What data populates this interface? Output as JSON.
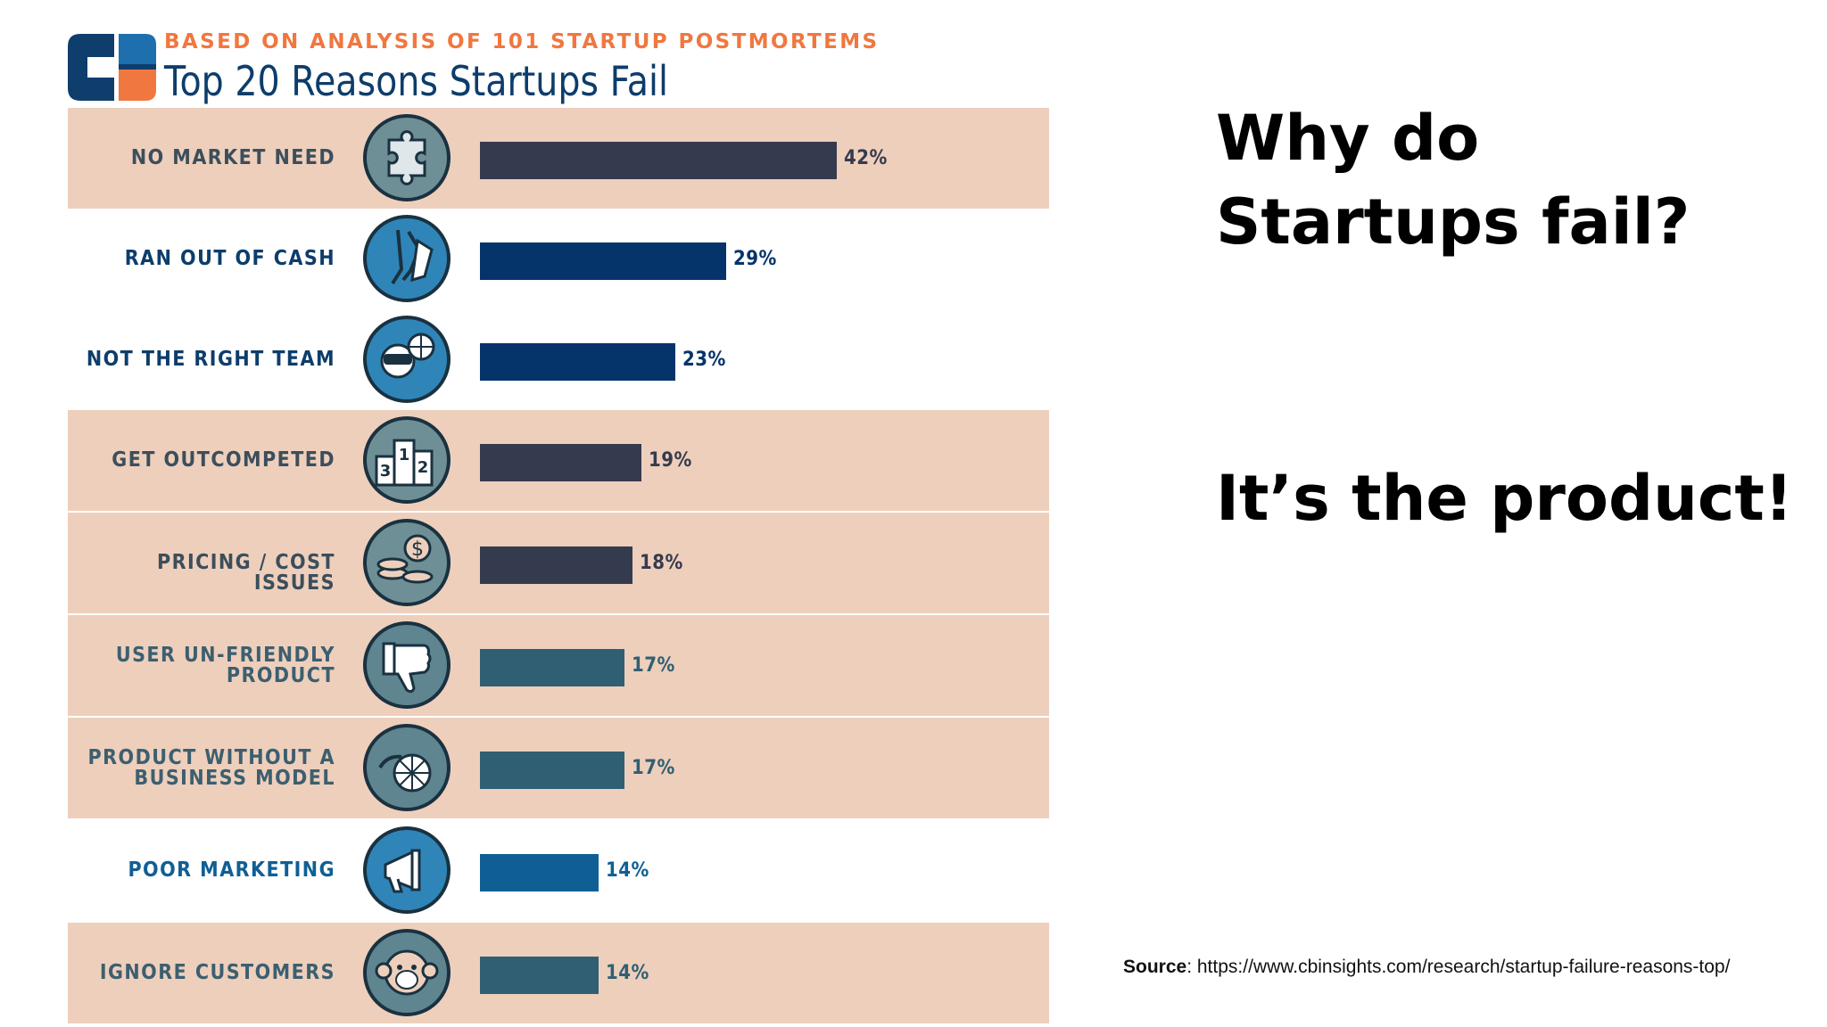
{
  "header": {
    "eyebrow": "BASED ON ANALYSIS OF 101 STARTUP POSTMORTEMS",
    "title": "Top 20 Reasons Startups Fail"
  },
  "colors": {
    "eyebrow": "#f0773f",
    "title": "#0d3d6b",
    "row_shade": "#eecfbc",
    "bars": {
      "dark_slate": "#353b4e",
      "navy": "#05346a",
      "teal": "#305f73",
      "blue": "#0f5f95"
    },
    "logo_navy": "#0f3d6c",
    "logo_blue": "#1d6fae",
    "logo_orange": "#f0773f"
  },
  "chart_data": {
    "type": "bar",
    "orientation": "horizontal",
    "categories": [
      "NO MARKET NEED",
      "RAN OUT OF CASH",
      "NOT THE RIGHT TEAM",
      "GET OUTCOMPETED",
      "PRICING / COST ISSUES",
      "USER UN-FRIENDLY\nPRODUCT",
      "PRODUCT WITHOUT A\nBUSINESS MODEL",
      "POOR MARKETING",
      "IGNORE CUSTOMERS"
    ],
    "values": [
      42,
      29,
      23,
      19,
      18,
      17,
      17,
      14,
      14
    ],
    "value_labels": [
      "42%",
      "29%",
      "23%",
      "19%",
      "18%",
      "17%",
      "17%",
      "14%",
      "14%"
    ],
    "icons": [
      "puzzle-icon",
      "empty-pocket-icon",
      "team-vr-icon",
      "podium-icon",
      "coins-icon",
      "thumbs-down-icon",
      "wheel-icon",
      "megaphone-icon",
      "monkey-icon"
    ],
    "bar_colors": [
      "dark_slate",
      "navy",
      "navy",
      "dark_slate",
      "dark_slate",
      "teal",
      "teal",
      "blue",
      "teal"
    ],
    "label_colors": [
      "#3c4e5b",
      "#0d3d6b",
      "#0d3d6b",
      "#3c4e5b",
      "#3c4e5b",
      "#3c5f70",
      "#3c5f70",
      "#0f5f95",
      "#3c5f70"
    ],
    "shaded": [
      true,
      false,
      false,
      true,
      true,
      true,
      true,
      false,
      true
    ],
    "xlim": [
      0,
      42
    ]
  },
  "right_panel": {
    "headline": "Why do Startups fail?",
    "subline": "It’s the product!"
  },
  "footer": {
    "source_label": "Source",
    "source_text": ": https://www.cbinsights.com/research/startup-failure-reasons-top/"
  }
}
